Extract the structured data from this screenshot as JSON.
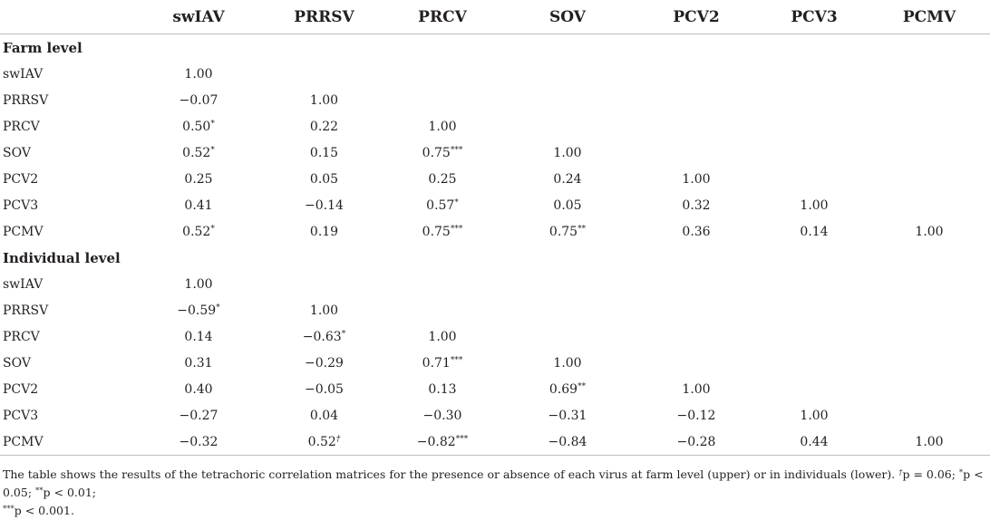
{
  "table": {
    "headers": [
      "",
      "swIAV",
      "PRRSV",
      "PRCV",
      "SOV",
      "PCV2",
      "PCV3",
      "PCMV"
    ],
    "sections": [
      {
        "title": "Farm level",
        "rows": [
          {
            "label": "swIAV",
            "cells": [
              {
                "v": "1.00",
                "s": ""
              },
              {
                "v": "",
                "s": ""
              },
              {
                "v": "",
                "s": ""
              },
              {
                "v": "",
                "s": ""
              },
              {
                "v": "",
                "s": ""
              },
              {
                "v": "",
                "s": ""
              },
              {
                "v": "",
                "s": ""
              }
            ]
          },
          {
            "label": "PRRSV",
            "cells": [
              {
                "v": "−0.07",
                "s": ""
              },
              {
                "v": "1.00",
                "s": ""
              },
              {
                "v": "",
                "s": ""
              },
              {
                "v": "",
                "s": ""
              },
              {
                "v": "",
                "s": ""
              },
              {
                "v": "",
                "s": ""
              },
              {
                "v": "",
                "s": ""
              }
            ]
          },
          {
            "label": "PRCV",
            "cells": [
              {
                "v": "0.50",
                "s": "*"
              },
              {
                "v": "0.22",
                "s": ""
              },
              {
                "v": "1.00",
                "s": ""
              },
              {
                "v": "",
                "s": ""
              },
              {
                "v": "",
                "s": ""
              },
              {
                "v": "",
                "s": ""
              },
              {
                "v": "",
                "s": ""
              }
            ]
          },
          {
            "label": "SOV",
            "cells": [
              {
                "v": "0.52",
                "s": "*"
              },
              {
                "v": "0.15",
                "s": ""
              },
              {
                "v": "0.75",
                "s": "***"
              },
              {
                "v": "1.00",
                "s": ""
              },
              {
                "v": "",
                "s": ""
              },
              {
                "v": "",
                "s": ""
              },
              {
                "v": "",
                "s": ""
              }
            ]
          },
          {
            "label": "PCV2",
            "cells": [
              {
                "v": "0.25",
                "s": ""
              },
              {
                "v": "0.05",
                "s": ""
              },
              {
                "v": "0.25",
                "s": ""
              },
              {
                "v": "0.24",
                "s": ""
              },
              {
                "v": "1.00",
                "s": ""
              },
              {
                "v": "",
                "s": ""
              },
              {
                "v": "",
                "s": ""
              }
            ]
          },
          {
            "label": "PCV3",
            "cells": [
              {
                "v": "0.41",
                "s": ""
              },
              {
                "v": "−0.14",
                "s": ""
              },
              {
                "v": "0.57",
                "s": "*"
              },
              {
                "v": "0.05",
                "s": ""
              },
              {
                "v": "0.32",
                "s": ""
              },
              {
                "v": "1.00",
                "s": ""
              },
              {
                "v": "",
                "s": ""
              }
            ]
          },
          {
            "label": "PCMV",
            "cells": [
              {
                "v": "0.52",
                "s": "*"
              },
              {
                "v": "0.19",
                "s": ""
              },
              {
                "v": "0.75",
                "s": "***"
              },
              {
                "v": "0.75",
                "s": "**"
              },
              {
                "v": "0.36",
                "s": ""
              },
              {
                "v": "0.14",
                "s": ""
              },
              {
                "v": "1.00",
                "s": ""
              }
            ]
          }
        ]
      },
      {
        "title": "Individual level",
        "rows": [
          {
            "label": "swIAV",
            "cells": [
              {
                "v": "1.00",
                "s": ""
              },
              {
                "v": "",
                "s": ""
              },
              {
                "v": "",
                "s": ""
              },
              {
                "v": "",
                "s": ""
              },
              {
                "v": "",
                "s": ""
              },
              {
                "v": "",
                "s": ""
              },
              {
                "v": "",
                "s": ""
              }
            ]
          },
          {
            "label": "PRRSV",
            "cells": [
              {
                "v": "−0.59",
                "s": "*"
              },
              {
                "v": "1.00",
                "s": ""
              },
              {
                "v": "",
                "s": ""
              },
              {
                "v": "",
                "s": ""
              },
              {
                "v": "",
                "s": ""
              },
              {
                "v": "",
                "s": ""
              },
              {
                "v": "",
                "s": ""
              }
            ]
          },
          {
            "label": "PRCV",
            "cells": [
              {
                "v": "0.14",
                "s": ""
              },
              {
                "v": "−0.63",
                "s": "*"
              },
              {
                "v": "1.00",
                "s": ""
              },
              {
                "v": "",
                "s": ""
              },
              {
                "v": "",
                "s": ""
              },
              {
                "v": "",
                "s": ""
              },
              {
                "v": "",
                "s": ""
              }
            ]
          },
          {
            "label": "SOV",
            "cells": [
              {
                "v": "0.31",
                "s": ""
              },
              {
                "v": "−0.29",
                "s": ""
              },
              {
                "v": "0.71",
                "s": "***"
              },
              {
                "v": "1.00",
                "s": ""
              },
              {
                "v": "",
                "s": ""
              },
              {
                "v": "",
                "s": ""
              },
              {
                "v": "",
                "s": ""
              }
            ]
          },
          {
            "label": "PCV2",
            "cells": [
              {
                "v": "0.40",
                "s": ""
              },
              {
                "v": "−0.05",
                "s": ""
              },
              {
                "v": "0.13",
                "s": ""
              },
              {
                "v": "0.69",
                "s": "**"
              },
              {
                "v": "1.00",
                "s": ""
              },
              {
                "v": "",
                "s": ""
              },
              {
                "v": "",
                "s": ""
              }
            ]
          },
          {
            "label": "PCV3",
            "cells": [
              {
                "v": "−0.27",
                "s": ""
              },
              {
                "v": "0.04",
                "s": ""
              },
              {
                "v": "−0.30",
                "s": ""
              },
              {
                "v": "−0.31",
                "s": ""
              },
              {
                "v": "−0.12",
                "s": ""
              },
              {
                "v": "1.00",
                "s": ""
              },
              {
                "v": "",
                "s": ""
              }
            ]
          },
          {
            "label": "PCMV",
            "cells": [
              {
                "v": "−0.32",
                "s": ""
              },
              {
                "v": "0.52",
                "s": "†"
              },
              {
                "v": "−0.82",
                "s": "***"
              },
              {
                "v": "−0.84",
                "s": ""
              },
              {
                "v": "−0.28",
                "s": ""
              },
              {
                "v": "0.44",
                "s": ""
              },
              {
                "v": "1.00",
                "s": ""
              }
            ]
          }
        ]
      }
    ]
  },
  "footnote": {
    "lead": "The table shows the results of the tetrachoric correlation matrices for the presence or absence of each virus at farm level (upper) or in individuals (lower). ",
    "dagger_mark": "†",
    "dagger_text": "p = 0.06; ",
    "star1_mark": "*",
    "star1_text": "p < 0.05; ",
    "star2_mark": "**",
    "star2_text": "p < 0.01; ",
    "star3_mark": "***",
    "star3_text": "p < 0.001."
  }
}
